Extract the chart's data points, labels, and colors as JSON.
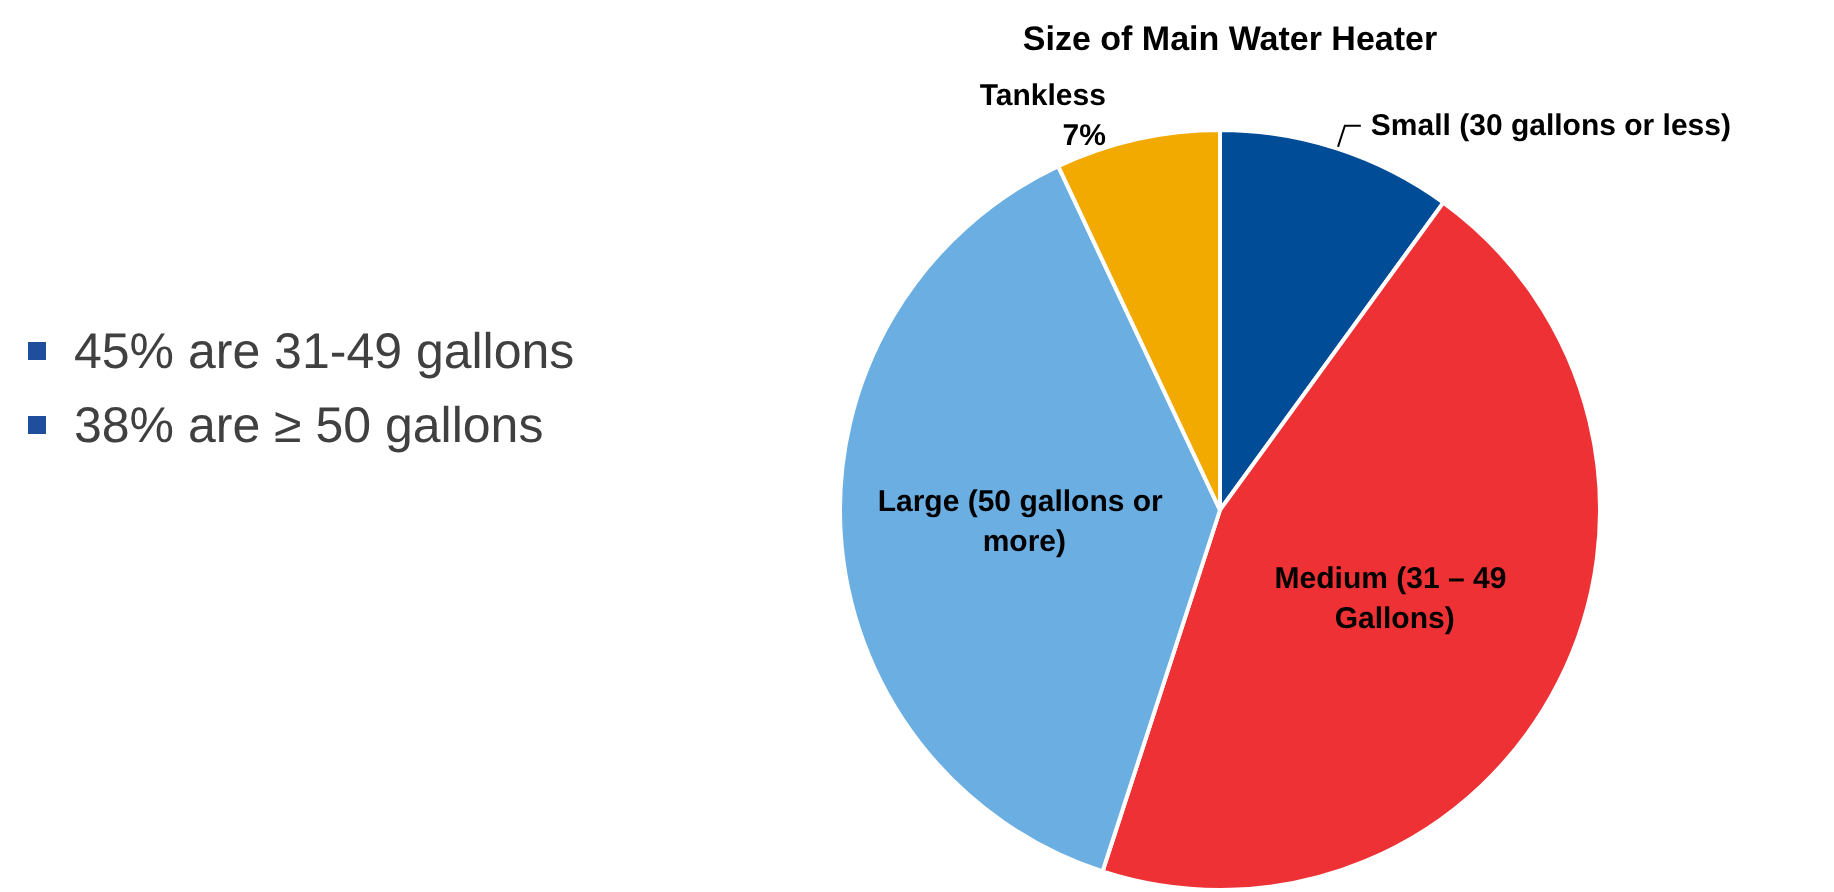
{
  "chart_data": {
    "type": "pie",
    "title": "Size of Main Water Heater",
    "categories": [
      "Small (30 gallons or less)",
      "Medium (31 – 49 Gallons)",
      "Large (50 gallons or more)",
      "Tankless"
    ],
    "values": [
      10,
      45,
      38,
      7
    ],
    "colors": [
      "#004c97",
      "#ee3135",
      "#6aaee2",
      "#f2a900"
    ],
    "value_labels": [
      null,
      null,
      null,
      "7%"
    ],
    "annotations": [
      "45% are 31-49 gallons",
      "38% are ≥ 50 gallons"
    ],
    "legend": false
  }
}
